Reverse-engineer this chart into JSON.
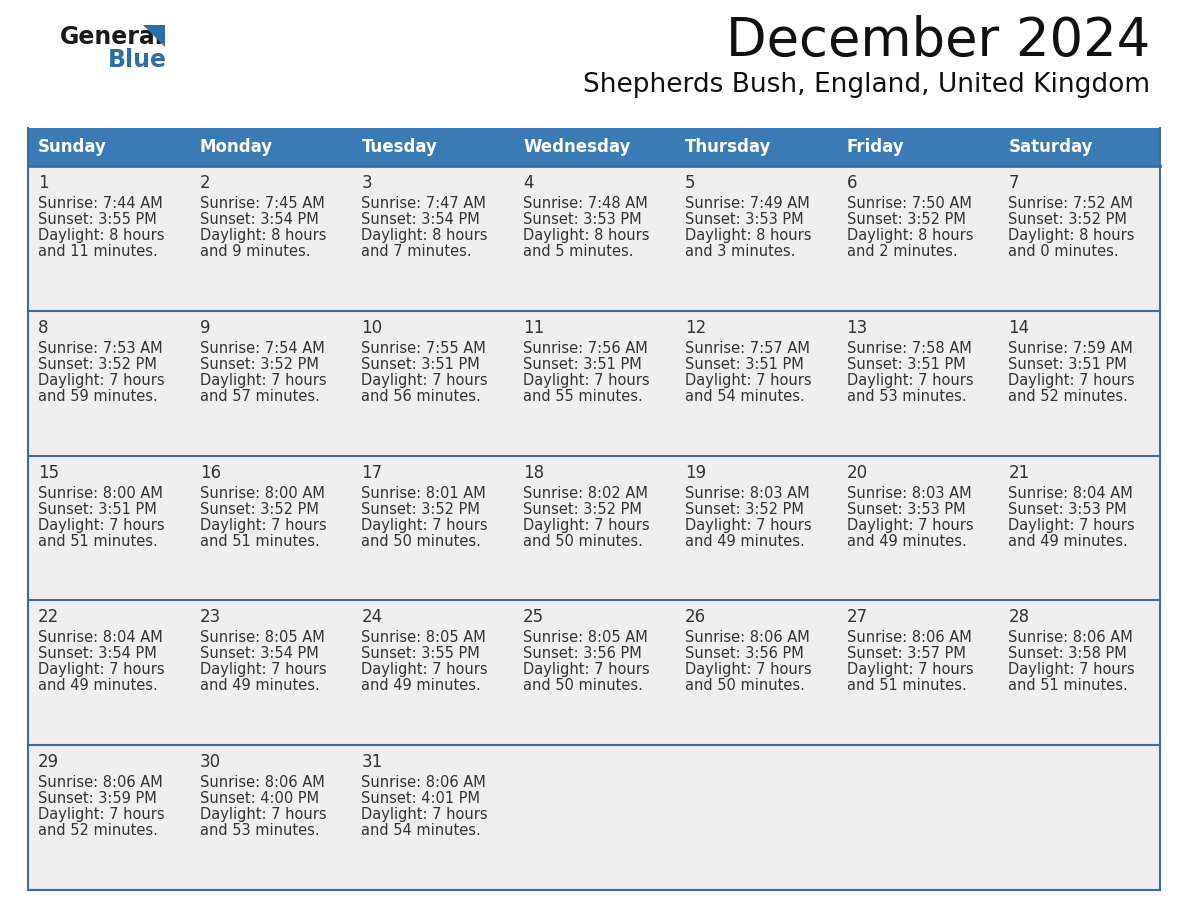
{
  "title": "December 2024",
  "subtitle": "Shepherds Bush, England, United Kingdom",
  "header_bg_color": "#3A7AB5",
  "header_text_color": "#FFFFFF",
  "row_bg_color": "#EFEFEF",
  "row_separator_color": "#3A6EA0",
  "outer_border_color": "#3A6EA0",
  "text_color": "#333333",
  "days_of_week": [
    "Sunday",
    "Monday",
    "Tuesday",
    "Wednesday",
    "Thursday",
    "Friday",
    "Saturday"
  ],
  "weeks": [
    [
      {
        "day": 1,
        "sunrise": "7:44 AM",
        "sunset": "3:55 PM",
        "daylight1": "8 hours",
        "daylight2": "and 11 minutes."
      },
      {
        "day": 2,
        "sunrise": "7:45 AM",
        "sunset": "3:54 PM",
        "daylight1": "8 hours",
        "daylight2": "and 9 minutes."
      },
      {
        "day": 3,
        "sunrise": "7:47 AM",
        "sunset": "3:54 PM",
        "daylight1": "8 hours",
        "daylight2": "and 7 minutes."
      },
      {
        "day": 4,
        "sunrise": "7:48 AM",
        "sunset": "3:53 PM",
        "daylight1": "8 hours",
        "daylight2": "and 5 minutes."
      },
      {
        "day": 5,
        "sunrise": "7:49 AM",
        "sunset": "3:53 PM",
        "daylight1": "8 hours",
        "daylight2": "and 3 minutes."
      },
      {
        "day": 6,
        "sunrise": "7:50 AM",
        "sunset": "3:52 PM",
        "daylight1": "8 hours",
        "daylight2": "and 2 minutes."
      },
      {
        "day": 7,
        "sunrise": "7:52 AM",
        "sunset": "3:52 PM",
        "daylight1": "8 hours",
        "daylight2": "and 0 minutes."
      }
    ],
    [
      {
        "day": 8,
        "sunrise": "7:53 AM",
        "sunset": "3:52 PM",
        "daylight1": "7 hours",
        "daylight2": "and 59 minutes."
      },
      {
        "day": 9,
        "sunrise": "7:54 AM",
        "sunset": "3:52 PM",
        "daylight1": "7 hours",
        "daylight2": "and 57 minutes."
      },
      {
        "day": 10,
        "sunrise": "7:55 AM",
        "sunset": "3:51 PM",
        "daylight1": "7 hours",
        "daylight2": "and 56 minutes."
      },
      {
        "day": 11,
        "sunrise": "7:56 AM",
        "sunset": "3:51 PM",
        "daylight1": "7 hours",
        "daylight2": "and 55 minutes."
      },
      {
        "day": 12,
        "sunrise": "7:57 AM",
        "sunset": "3:51 PM",
        "daylight1": "7 hours",
        "daylight2": "and 54 minutes."
      },
      {
        "day": 13,
        "sunrise": "7:58 AM",
        "sunset": "3:51 PM",
        "daylight1": "7 hours",
        "daylight2": "and 53 minutes."
      },
      {
        "day": 14,
        "sunrise": "7:59 AM",
        "sunset": "3:51 PM",
        "daylight1": "7 hours",
        "daylight2": "and 52 minutes."
      }
    ],
    [
      {
        "day": 15,
        "sunrise": "8:00 AM",
        "sunset": "3:51 PM",
        "daylight1": "7 hours",
        "daylight2": "and 51 minutes."
      },
      {
        "day": 16,
        "sunrise": "8:00 AM",
        "sunset": "3:52 PM",
        "daylight1": "7 hours",
        "daylight2": "and 51 minutes."
      },
      {
        "day": 17,
        "sunrise": "8:01 AM",
        "sunset": "3:52 PM",
        "daylight1": "7 hours",
        "daylight2": "and 50 minutes."
      },
      {
        "day": 18,
        "sunrise": "8:02 AM",
        "sunset": "3:52 PM",
        "daylight1": "7 hours",
        "daylight2": "and 50 minutes."
      },
      {
        "day": 19,
        "sunrise": "8:03 AM",
        "sunset": "3:52 PM",
        "daylight1": "7 hours",
        "daylight2": "and 49 minutes."
      },
      {
        "day": 20,
        "sunrise": "8:03 AM",
        "sunset": "3:53 PM",
        "daylight1": "7 hours",
        "daylight2": "and 49 minutes."
      },
      {
        "day": 21,
        "sunrise": "8:04 AM",
        "sunset": "3:53 PM",
        "daylight1": "7 hours",
        "daylight2": "and 49 minutes."
      }
    ],
    [
      {
        "day": 22,
        "sunrise": "8:04 AM",
        "sunset": "3:54 PM",
        "daylight1": "7 hours",
        "daylight2": "and 49 minutes."
      },
      {
        "day": 23,
        "sunrise": "8:05 AM",
        "sunset": "3:54 PM",
        "daylight1": "7 hours",
        "daylight2": "and 49 minutes."
      },
      {
        "day": 24,
        "sunrise": "8:05 AM",
        "sunset": "3:55 PM",
        "daylight1": "7 hours",
        "daylight2": "and 49 minutes."
      },
      {
        "day": 25,
        "sunrise": "8:05 AM",
        "sunset": "3:56 PM",
        "daylight1": "7 hours",
        "daylight2": "and 50 minutes."
      },
      {
        "day": 26,
        "sunrise": "8:06 AM",
        "sunset": "3:56 PM",
        "daylight1": "7 hours",
        "daylight2": "and 50 minutes."
      },
      {
        "day": 27,
        "sunrise": "8:06 AM",
        "sunset": "3:57 PM",
        "daylight1": "7 hours",
        "daylight2": "and 51 minutes."
      },
      {
        "day": 28,
        "sunrise": "8:06 AM",
        "sunset": "3:58 PM",
        "daylight1": "7 hours",
        "daylight2": "and 51 minutes."
      }
    ],
    [
      {
        "day": 29,
        "sunrise": "8:06 AM",
        "sunset": "3:59 PM",
        "daylight1": "7 hours",
        "daylight2": "and 52 minutes."
      },
      {
        "day": 30,
        "sunrise": "8:06 AM",
        "sunset": "4:00 PM",
        "daylight1": "7 hours",
        "daylight2": "and 53 minutes."
      },
      {
        "day": 31,
        "sunrise": "8:06 AM",
        "sunset": "4:01 PM",
        "daylight1": "7 hours",
        "daylight2": "and 54 minutes."
      },
      null,
      null,
      null,
      null
    ]
  ],
  "logo_text1": "General",
  "logo_text2": "Blue",
  "logo_color1": "#1a1a1a",
  "logo_color2": "#2E6EA6",
  "logo_triangle_color": "#2E6EA6",
  "fig_width": 11.88,
  "fig_height": 9.18,
  "dpi": 100
}
